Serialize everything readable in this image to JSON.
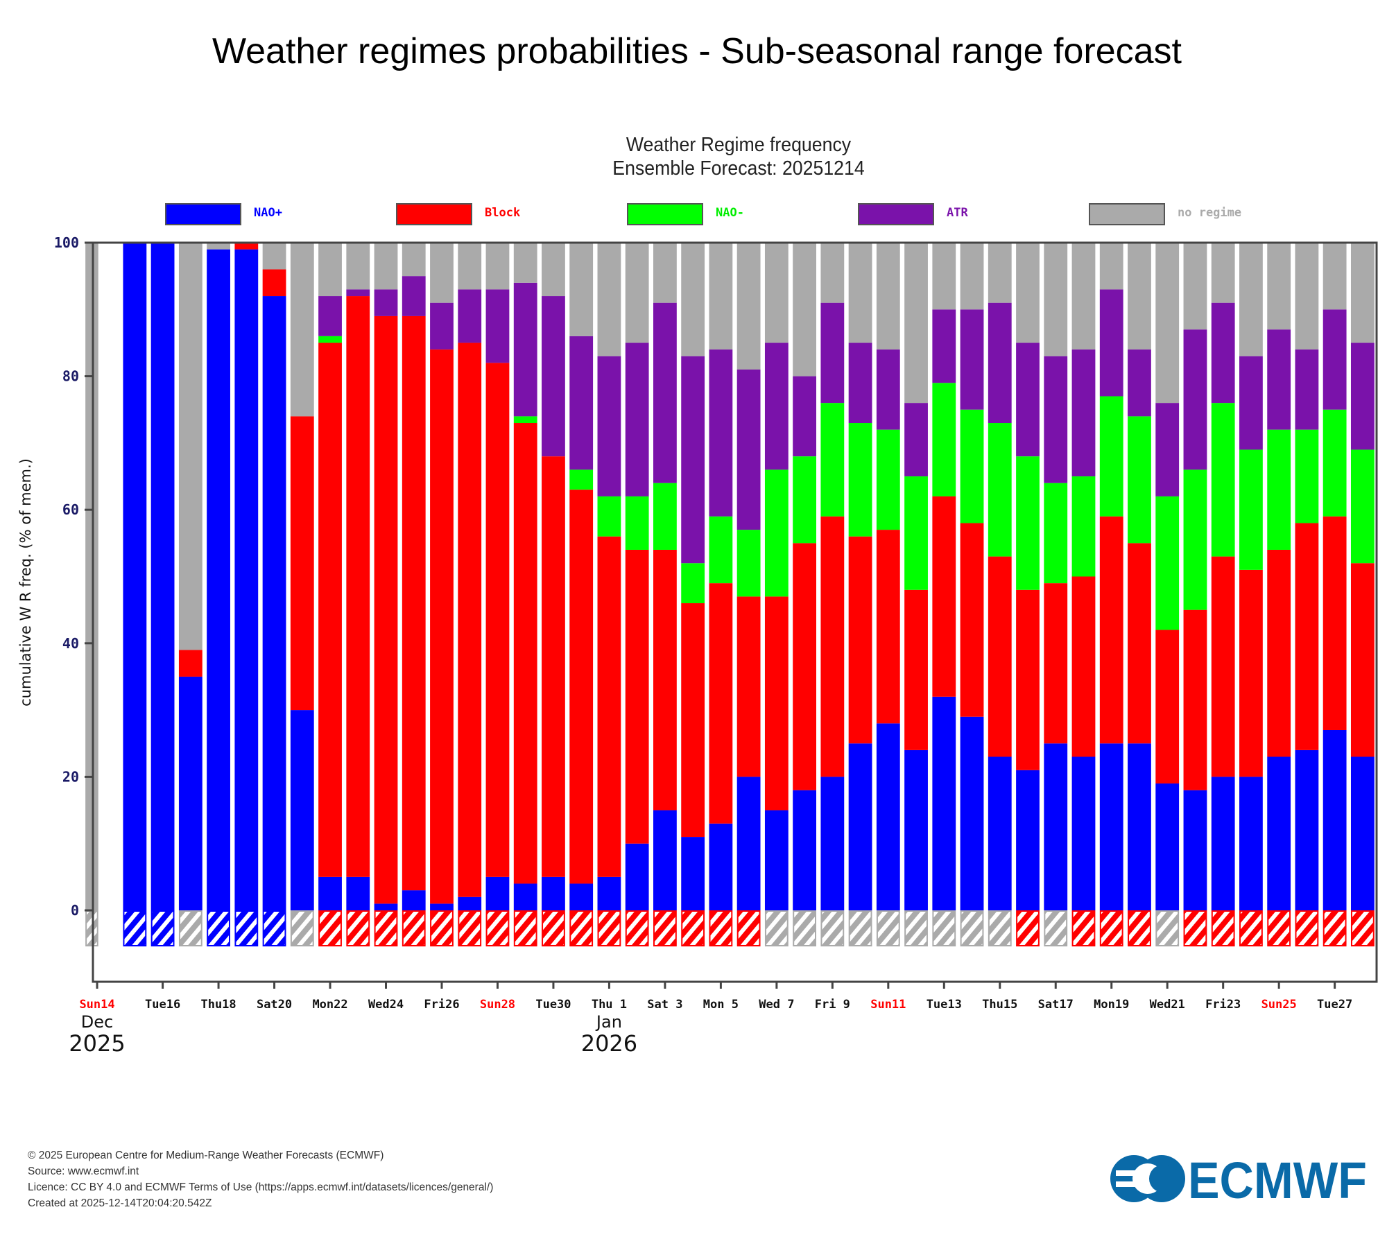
{
  "page_title": "Weather regimes probabilities - Sub-seasonal range forecast",
  "chart_title_line1": "Weather Regime frequency",
  "chart_title_line2": "Ensemble Forecast: 20251214",
  "footer": {
    "copyright": "© 2025 European Centre for Medium-Range Weather Forecasts (ECMWF)",
    "source": "Source: www.ecmwf.int",
    "licence": "Licence: CC BY 4.0 and ECMWF Terms of Use (https://apps.ecmwf.int/datasets/licences/general/)",
    "created": "Created at 2025-12-14T20:04:20.542Z"
  },
  "logo_text": "ECMWF",
  "logo_color": "#0a6aa8",
  "chart_data": {
    "type": "bar",
    "stacked": true,
    "title": "Weather Regime frequency — Ensemble Forecast: 20251214",
    "xlabel": "",
    "ylabel": "cumulative W R freq. (% of mem.)",
    "ylim": [
      0,
      100
    ],
    "yticks": [
      0,
      20,
      40,
      60,
      80,
      100
    ],
    "grid": false,
    "legend_position": "top",
    "legend": [
      {
        "name": "NAO+",
        "color": "#0000ff",
        "label_color": "#0000ff"
      },
      {
        "name": "Block",
        "color": "#ff0000",
        "label_color": "#ff0000"
      },
      {
        "name": "NAO-",
        "color": "#00ff00",
        "label_color": "#00ee00"
      },
      {
        "name": "ATR",
        "color": "#7a12aa",
        "label_color": "#7a12aa"
      },
      {
        "name": "no regime",
        "color": "#aaaaaa",
        "label_color": "#aaaaaa"
      }
    ],
    "x_tick_labels": [
      {
        "label": "Sun14",
        "index": 0,
        "weekend": true
      },
      {
        "label": "Tue16",
        "index": 2,
        "weekend": false
      },
      {
        "label": "Thu18",
        "index": 4,
        "weekend": false
      },
      {
        "label": "Sat20",
        "index": 6,
        "weekend": false
      },
      {
        "label": "Mon22",
        "index": 8,
        "weekend": false
      },
      {
        "label": "Wed24",
        "index": 10,
        "weekend": false
      },
      {
        "label": "Fri26",
        "index": 12,
        "weekend": false
      },
      {
        "label": "Sun28",
        "index": 14,
        "weekend": true
      },
      {
        "label": "Tue30",
        "index": 16,
        "weekend": false
      },
      {
        "label": "Thu 1",
        "index": 18,
        "weekend": false
      },
      {
        "label": "Sat 3",
        "index": 20,
        "weekend": false
      },
      {
        "label": "Mon 5",
        "index": 22,
        "weekend": false
      },
      {
        "label": "Wed 7",
        "index": 24,
        "weekend": false
      },
      {
        "label": "Fri 9",
        "index": 26,
        "weekend": false
      },
      {
        "label": "Sun11",
        "index": 28,
        "weekend": true
      },
      {
        "label": "Tue13",
        "index": 30,
        "weekend": false
      },
      {
        "label": "Thu15",
        "index": 32,
        "weekend": false
      },
      {
        "label": "Sat17",
        "index": 34,
        "weekend": false
      },
      {
        "label": "Mon19",
        "index": 36,
        "weekend": false
      },
      {
        "label": "Wed21",
        "index": 38,
        "weekend": false
      },
      {
        "label": "Fri23",
        "index": 40,
        "weekend": false
      },
      {
        "label": "Sun25",
        "index": 42,
        "weekend": true
      },
      {
        "label": "Tue27",
        "index": 44,
        "weekend": false
      }
    ],
    "month_labels": [
      {
        "month": "Dec",
        "year": "2025",
        "index": 0
      },
      {
        "month": "Jan",
        "year": "2026",
        "index": 18
      }
    ],
    "categories": [
      "2025-12-14",
      "2025-12-15",
      "2025-12-16",
      "2025-12-17",
      "2025-12-18",
      "2025-12-19",
      "2025-12-20",
      "2025-12-21",
      "2025-12-22",
      "2025-12-23",
      "2025-12-24",
      "2025-12-25",
      "2025-12-26",
      "2025-12-27",
      "2025-12-28",
      "2025-12-29",
      "2025-12-30",
      "2025-12-31",
      "2026-01-01",
      "2026-01-02",
      "2026-01-03",
      "2026-01-04",
      "2026-01-05",
      "2026-01-06",
      "2026-01-07",
      "2026-01-08",
      "2026-01-09",
      "2026-01-10",
      "2026-01-11",
      "2026-01-12",
      "2026-01-13",
      "2026-01-14",
      "2026-01-15",
      "2026-01-16",
      "2026-01-17",
      "2026-01-18",
      "2026-01-19",
      "2026-01-20",
      "2026-01-21",
      "2026-01-22",
      "2026-01-23",
      "2026-01-24",
      "2026-01-25",
      "2026-01-26",
      "2026-01-27",
      "2026-01-28"
    ],
    "cumulative_tops": {
      "NAO+": [
        0,
        100,
        100,
        35,
        99,
        99,
        92,
        30,
        5,
        5,
        1,
        3,
        1,
        2,
        5,
        4,
        5,
        4,
        5,
        10,
        15,
        11,
        13,
        20,
        15,
        18,
        20,
        25,
        28,
        24,
        32,
        29,
        23,
        21,
        25,
        23,
        25,
        25,
        19,
        18,
        20,
        20,
        23,
        24,
        27,
        23
      ],
      "Block": [
        0,
        100,
        100,
        39,
        99,
        100,
        96,
        74,
        85,
        92,
        89,
        89,
        84,
        85,
        82,
        73,
        68,
        63,
        56,
        54,
        54,
        46,
        49,
        47,
        47,
        55,
        59,
        56,
        57,
        48,
        62,
        58,
        53,
        48,
        49,
        50,
        59,
        55,
        42,
        45,
        53,
        51,
        54,
        58,
        59,
        52
      ],
      "NAO-": [
        0,
        100,
        100,
        39,
        99,
        100,
        96,
        74,
        86,
        92,
        89,
        89,
        84,
        85,
        82,
        74,
        68,
        66,
        62,
        62,
        64,
        52,
        59,
        57,
        66,
        68,
        76,
        73,
        72,
        65,
        79,
        75,
        73,
        68,
        64,
        65,
        77,
        74,
        62,
        66,
        76,
        69,
        72,
        72,
        75,
        69
      ],
      "ATR": [
        0,
        100,
        100,
        39,
        99,
        100,
        96,
        74,
        92,
        93,
        93,
        95,
        91,
        93,
        93,
        94,
        92,
        86,
        83,
        85,
        91,
        83,
        84,
        81,
        85,
        80,
        91,
        85,
        84,
        76,
        90,
        90,
        91,
        85,
        83,
        84,
        93,
        84,
        76,
        87,
        91,
        83,
        87,
        84,
        90,
        85
      ]
    },
    "series": [
      {
        "name": "NAO+",
        "values": [
          0,
          100,
          100,
          35,
          99,
          99,
          92,
          30,
          5,
          5,
          1,
          3,
          1,
          2,
          5,
          4,
          5,
          4,
          5,
          10,
          15,
          11,
          13,
          20,
          15,
          18,
          20,
          25,
          28,
          24,
          32,
          29,
          23,
          21,
          25,
          23,
          25,
          25,
          19,
          18,
          20,
          20,
          23,
          24,
          27,
          23
        ]
      },
      {
        "name": "Block",
        "values": [
          0,
          0,
          0,
          4,
          0,
          1,
          4,
          44,
          80,
          87,
          88,
          86,
          83,
          83,
          77,
          69,
          63,
          59,
          51,
          44,
          39,
          35,
          36,
          27,
          32,
          37,
          39,
          31,
          29,
          24,
          30,
          29,
          30,
          27,
          24,
          27,
          34,
          30,
          23,
          27,
          33,
          31,
          31,
          34,
          32,
          29
        ]
      },
      {
        "name": "NAO-",
        "values": [
          0,
          0,
          0,
          0,
          0,
          0,
          0,
          0,
          1,
          0,
          0,
          0,
          0,
          0,
          0,
          1,
          0,
          3,
          6,
          8,
          10,
          6,
          10,
          10,
          19,
          13,
          17,
          17,
          15,
          17,
          17,
          17,
          20,
          20,
          15,
          15,
          18,
          19,
          20,
          21,
          23,
          18,
          18,
          14,
          16,
          17
        ]
      },
      {
        "name": "ATR",
        "values": [
          0,
          0,
          0,
          0,
          0,
          0,
          0,
          0,
          6,
          1,
          4,
          6,
          7,
          8,
          11,
          20,
          24,
          20,
          21,
          23,
          27,
          31,
          25,
          24,
          19,
          12,
          15,
          12,
          12,
          11,
          11,
          15,
          18,
          17,
          19,
          19,
          16,
          10,
          14,
          21,
          15,
          14,
          15,
          12,
          15,
          16
        ]
      },
      {
        "name": "no regime",
        "values": [
          100,
          0,
          0,
          61,
          1,
          0,
          4,
          26,
          8,
          7,
          7,
          5,
          9,
          7,
          7,
          6,
          8,
          14,
          17,
          15,
          9,
          17,
          16,
          19,
          15,
          20,
          9,
          15,
          16,
          24,
          10,
          10,
          9,
          15,
          17,
          16,
          7,
          16,
          24,
          13,
          9,
          17,
          13,
          16,
          10,
          15
        ]
      }
    ],
    "dominant_regime": [
      "no regime",
      "NAO+",
      "NAO+",
      "no regime",
      "NAO+",
      "NAO+",
      "NAO+",
      "no regime",
      "Block",
      "Block",
      "Block",
      "Block",
      "Block",
      "Block",
      "Block",
      "Block",
      "Block",
      "Block",
      "Block",
      "Block",
      "Block",
      "Block",
      "Block",
      "Block",
      "no regime",
      "no regime",
      "no regime",
      "no regime",
      "no regime",
      "no regime",
      "no regime",
      "no regime",
      "no regime",
      "Block",
      "no regime",
      "Block",
      "Block",
      "Block",
      "no regime",
      "Block",
      "Block",
      "Block",
      "Block",
      "Block",
      "Block",
      "Block"
    ]
  }
}
